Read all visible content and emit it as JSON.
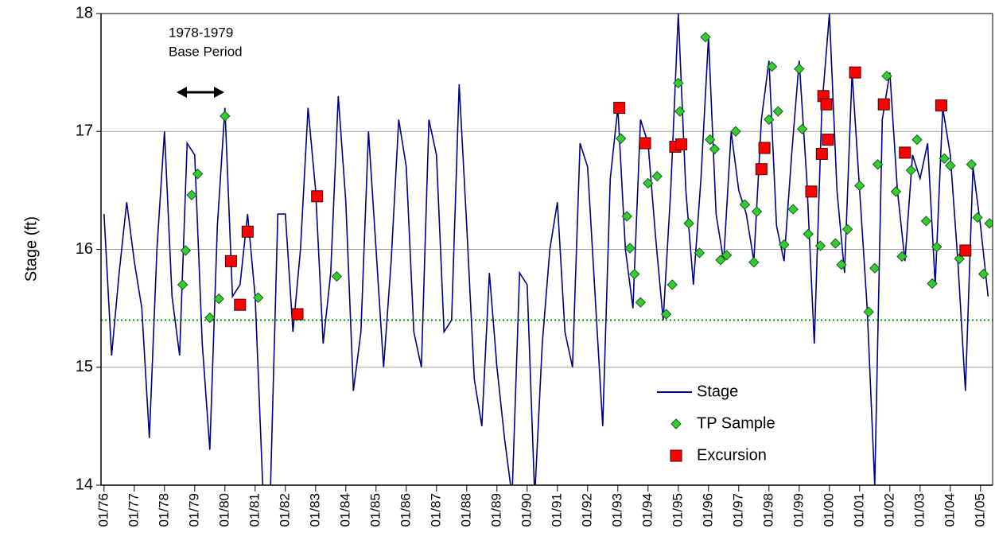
{
  "chart_data": {
    "type": "line",
    "y_label": "Stage (ft)",
    "annotation": [
      "1978-1979",
      "Base Period"
    ],
    "xlim": [
      1975.9,
      2005.4
    ],
    "ylim": [
      14,
      18
    ],
    "yticks": [
      14,
      15,
      16,
      17,
      18
    ],
    "xticks": [
      {
        "value": 1976,
        "label": "01/76"
      },
      {
        "value": 1977,
        "label": "01/77"
      },
      {
        "value": 1978,
        "label": "01/78"
      },
      {
        "value": 1979,
        "label": "01/79"
      },
      {
        "value": 1980,
        "label": "01/80"
      },
      {
        "value": 1981,
        "label": "01/81"
      },
      {
        "value": 1982,
        "label": "01/82"
      },
      {
        "value": 1983,
        "label": "01/83"
      },
      {
        "value": 1984,
        "label": "01/84"
      },
      {
        "value": 1985,
        "label": "01/85"
      },
      {
        "value": 1986,
        "label": "01/86"
      },
      {
        "value": 1987,
        "label": "01/87"
      },
      {
        "value": 1988,
        "label": "01/88"
      },
      {
        "value": 1989,
        "label": "01/89"
      },
      {
        "value": 1990,
        "label": "01/90"
      },
      {
        "value": 1991,
        "label": "01/91"
      },
      {
        "value": 1992,
        "label": "01/92"
      },
      {
        "value": 1993,
        "label": "01/93"
      },
      {
        "value": 1994,
        "label": "01/94"
      },
      {
        "value": 1995,
        "label": "01/95"
      },
      {
        "value": 1996,
        "label": "01/96"
      },
      {
        "value": 1997,
        "label": "01/97"
      },
      {
        "value": 1998,
        "label": "01/98"
      },
      {
        "value": 1999,
        "label": "01/99"
      },
      {
        "value": 2000,
        "label": "01/00"
      },
      {
        "value": 2001,
        "label": "01/01"
      },
      {
        "value": 2002,
        "label": "01/02"
      },
      {
        "value": 2003,
        "label": "01/03"
      },
      {
        "value": 2004,
        "label": "01/04"
      },
      {
        "value": 2005,
        "label": "01/05"
      }
    ],
    "grid": true,
    "reference_line": {
      "value": 15.4,
      "color": "#009900"
    },
    "series": [
      {
        "name": "Stage",
        "color": "#000080",
        "marker": "line",
        "x": [
          1976,
          1976.25,
          1976.5,
          1976.75,
          1977,
          1977.25,
          1977.5,
          1977.75,
          1978,
          1978.25,
          1978.5,
          1978.75,
          1979,
          1979.25,
          1979.5,
          1979.75,
          1980,
          1980.25,
          1980.5,
          1980.75,
          1981,
          1981.25,
          1981.5,
          1981.75,
          1982,
          1982.25,
          1982.5,
          1982.75,
          1983,
          1983.25,
          1983.5,
          1983.75,
          1984,
          1984.25,
          1984.5,
          1984.75,
          1985,
          1985.25,
          1985.5,
          1985.75,
          1986,
          1986.25,
          1986.5,
          1986.75,
          1987,
          1987.25,
          1987.5,
          1987.75,
          1988,
          1988.25,
          1988.5,
          1988.75,
          1989,
          1989.25,
          1989.5,
          1989.75,
          1990,
          1990.25,
          1990.5,
          1990.75,
          1991,
          1991.25,
          1991.5,
          1991.75,
          1992,
          1992.25,
          1992.5,
          1992.75,
          1993,
          1993.25,
          1993.5,
          1993.75,
          1994,
          1994.25,
          1994.5,
          1994.75,
          1995,
          1995.25,
          1995.5,
          1995.75,
          1996,
          1996.25,
          1996.5,
          1996.75,
          1997,
          1997.25,
          1997.5,
          1997.75,
          1998,
          1998.25,
          1998.5,
          1998.75,
          1999,
          1999.25,
          1999.5,
          1999.75,
          2000,
          2000.25,
          2000.5,
          2000.75,
          2001,
          2001.25,
          2001.5,
          2001.75,
          2002,
          2002.25,
          2002.5,
          2002.75,
          2003,
          2003.25,
          2003.5,
          2003.75,
          2004,
          2004.25,
          2004.5,
          2004.75,
          2005,
          2005.25
        ],
        "values": [
          16.3,
          15.1,
          15.8,
          16.4,
          15.9,
          15.5,
          14.4,
          16.0,
          17.0,
          15.6,
          15.1,
          16.9,
          16.8,
          15.2,
          14.3,
          16.2,
          17.2,
          15.6,
          15.7,
          16.3,
          15.6,
          14.0,
          13.9,
          16.3,
          16.3,
          15.3,
          16.0,
          17.2,
          16.5,
          15.2,
          15.8,
          17.3,
          16.4,
          14.8,
          15.3,
          17.0,
          16.0,
          15.0,
          15.9,
          17.1,
          16.7,
          15.3,
          15.0,
          17.1,
          16.8,
          15.3,
          15.4,
          17.4,
          16.2,
          14.9,
          14.5,
          15.8,
          15.0,
          14.4,
          13.9,
          15.8,
          15.7,
          13.9,
          15.2,
          16.0,
          16.4,
          15.3,
          15.0,
          16.9,
          16.7,
          15.6,
          14.5,
          16.6,
          17.2,
          16.0,
          15.5,
          17.1,
          16.9,
          16.1,
          15.4,
          16.5,
          18.0,
          16.5,
          15.7,
          16.6,
          17.8,
          16.3,
          15.9,
          17.0,
          16.5,
          16.3,
          15.9,
          17.1,
          17.6,
          16.2,
          15.9,
          16.8,
          17.6,
          16.6,
          15.2,
          17.2,
          18.0,
          16.5,
          15.8,
          17.5,
          16.5,
          15.5,
          14.0,
          17.1,
          17.5,
          16.5,
          15.9,
          16.8,
          16.6,
          16.9,
          15.7,
          17.2,
          16.8,
          15.9,
          14.8,
          16.7,
          16.2,
          15.6
        ]
      },
      {
        "name": "TP Sample",
        "color": "#33cc33",
        "marker": "diamond",
        "x": [
          1978.6,
          1978.7,
          1978.9,
          1979.1,
          1979.5,
          1979.8,
          1980.0,
          1981.1,
          1983.7,
          1993.1,
          1993.3,
          1993.4,
          1993.55,
          1993.75,
          1994.0,
          1994.3,
          1994.6,
          1994.8,
          1995.0,
          1995.05,
          1995.35,
          1995.7,
          1995.9,
          1996.05,
          1996.2,
          1996.4,
          1996.6,
          1996.9,
          1997.2,
          1997.5,
          1997.6,
          1998.0,
          1998.1,
          1998.3,
          1998.5,
          1998.8,
          1999.0,
          1999.1,
          1999.3,
          1999.7,
          2000.2,
          2000.4,
          2000.6,
          2001.0,
          2001.3,
          2001.5,
          2001.6,
          2001.9,
          2002.2,
          2002.4,
          2002.7,
          2002.9,
          2003.2,
          2003.4,
          2003.55,
          2003.8,
          2004.0,
          2004.3,
          2004.7,
          2004.9,
          2005.1,
          2005.3
        ],
        "values": [
          15.7,
          15.99,
          16.46,
          16.64,
          15.42,
          15.58,
          17.13,
          15.59,
          15.77,
          16.94,
          16.28,
          16.01,
          15.79,
          15.55,
          16.56,
          16.62,
          15.45,
          15.7,
          17.41,
          17.17,
          16.22,
          15.97,
          17.8,
          16.93,
          16.85,
          15.91,
          15.95,
          17.0,
          16.38,
          15.89,
          16.32,
          17.1,
          17.55,
          17.17,
          16.04,
          16.34,
          17.53,
          17.02,
          16.13,
          16.03,
          16.05,
          15.87,
          16.17,
          16.54,
          15.47,
          15.84,
          16.72,
          17.47,
          16.49,
          15.94,
          16.67,
          16.93,
          16.24,
          15.71,
          16.02,
          16.77,
          16.71,
          15.92,
          16.72,
          16.27,
          15.79,
          16.22
        ]
      },
      {
        "name": "Excursion",
        "color": "#ff0000",
        "marker": "square",
        "x": [
          1980.2,
          1980.5,
          1980.75,
          1982.4,
          1983.05,
          1993.05,
          1993.9,
          1994.9,
          1995.1,
          1997.75,
          1997.85,
          1999.4,
          1999.75,
          1999.8,
          1999.9,
          1999.95,
          2000.85,
          2001.8,
          2002.5,
          2003.7,
          2004.5
        ],
        "values": [
          15.9,
          15.53,
          16.15,
          15.45,
          16.45,
          17.2,
          16.9,
          16.87,
          16.89,
          16.68,
          16.86,
          16.49,
          16.81,
          17.3,
          17.23,
          16.93,
          17.5,
          17.23,
          16.82,
          17.22,
          15.99
        ]
      }
    ]
  }
}
